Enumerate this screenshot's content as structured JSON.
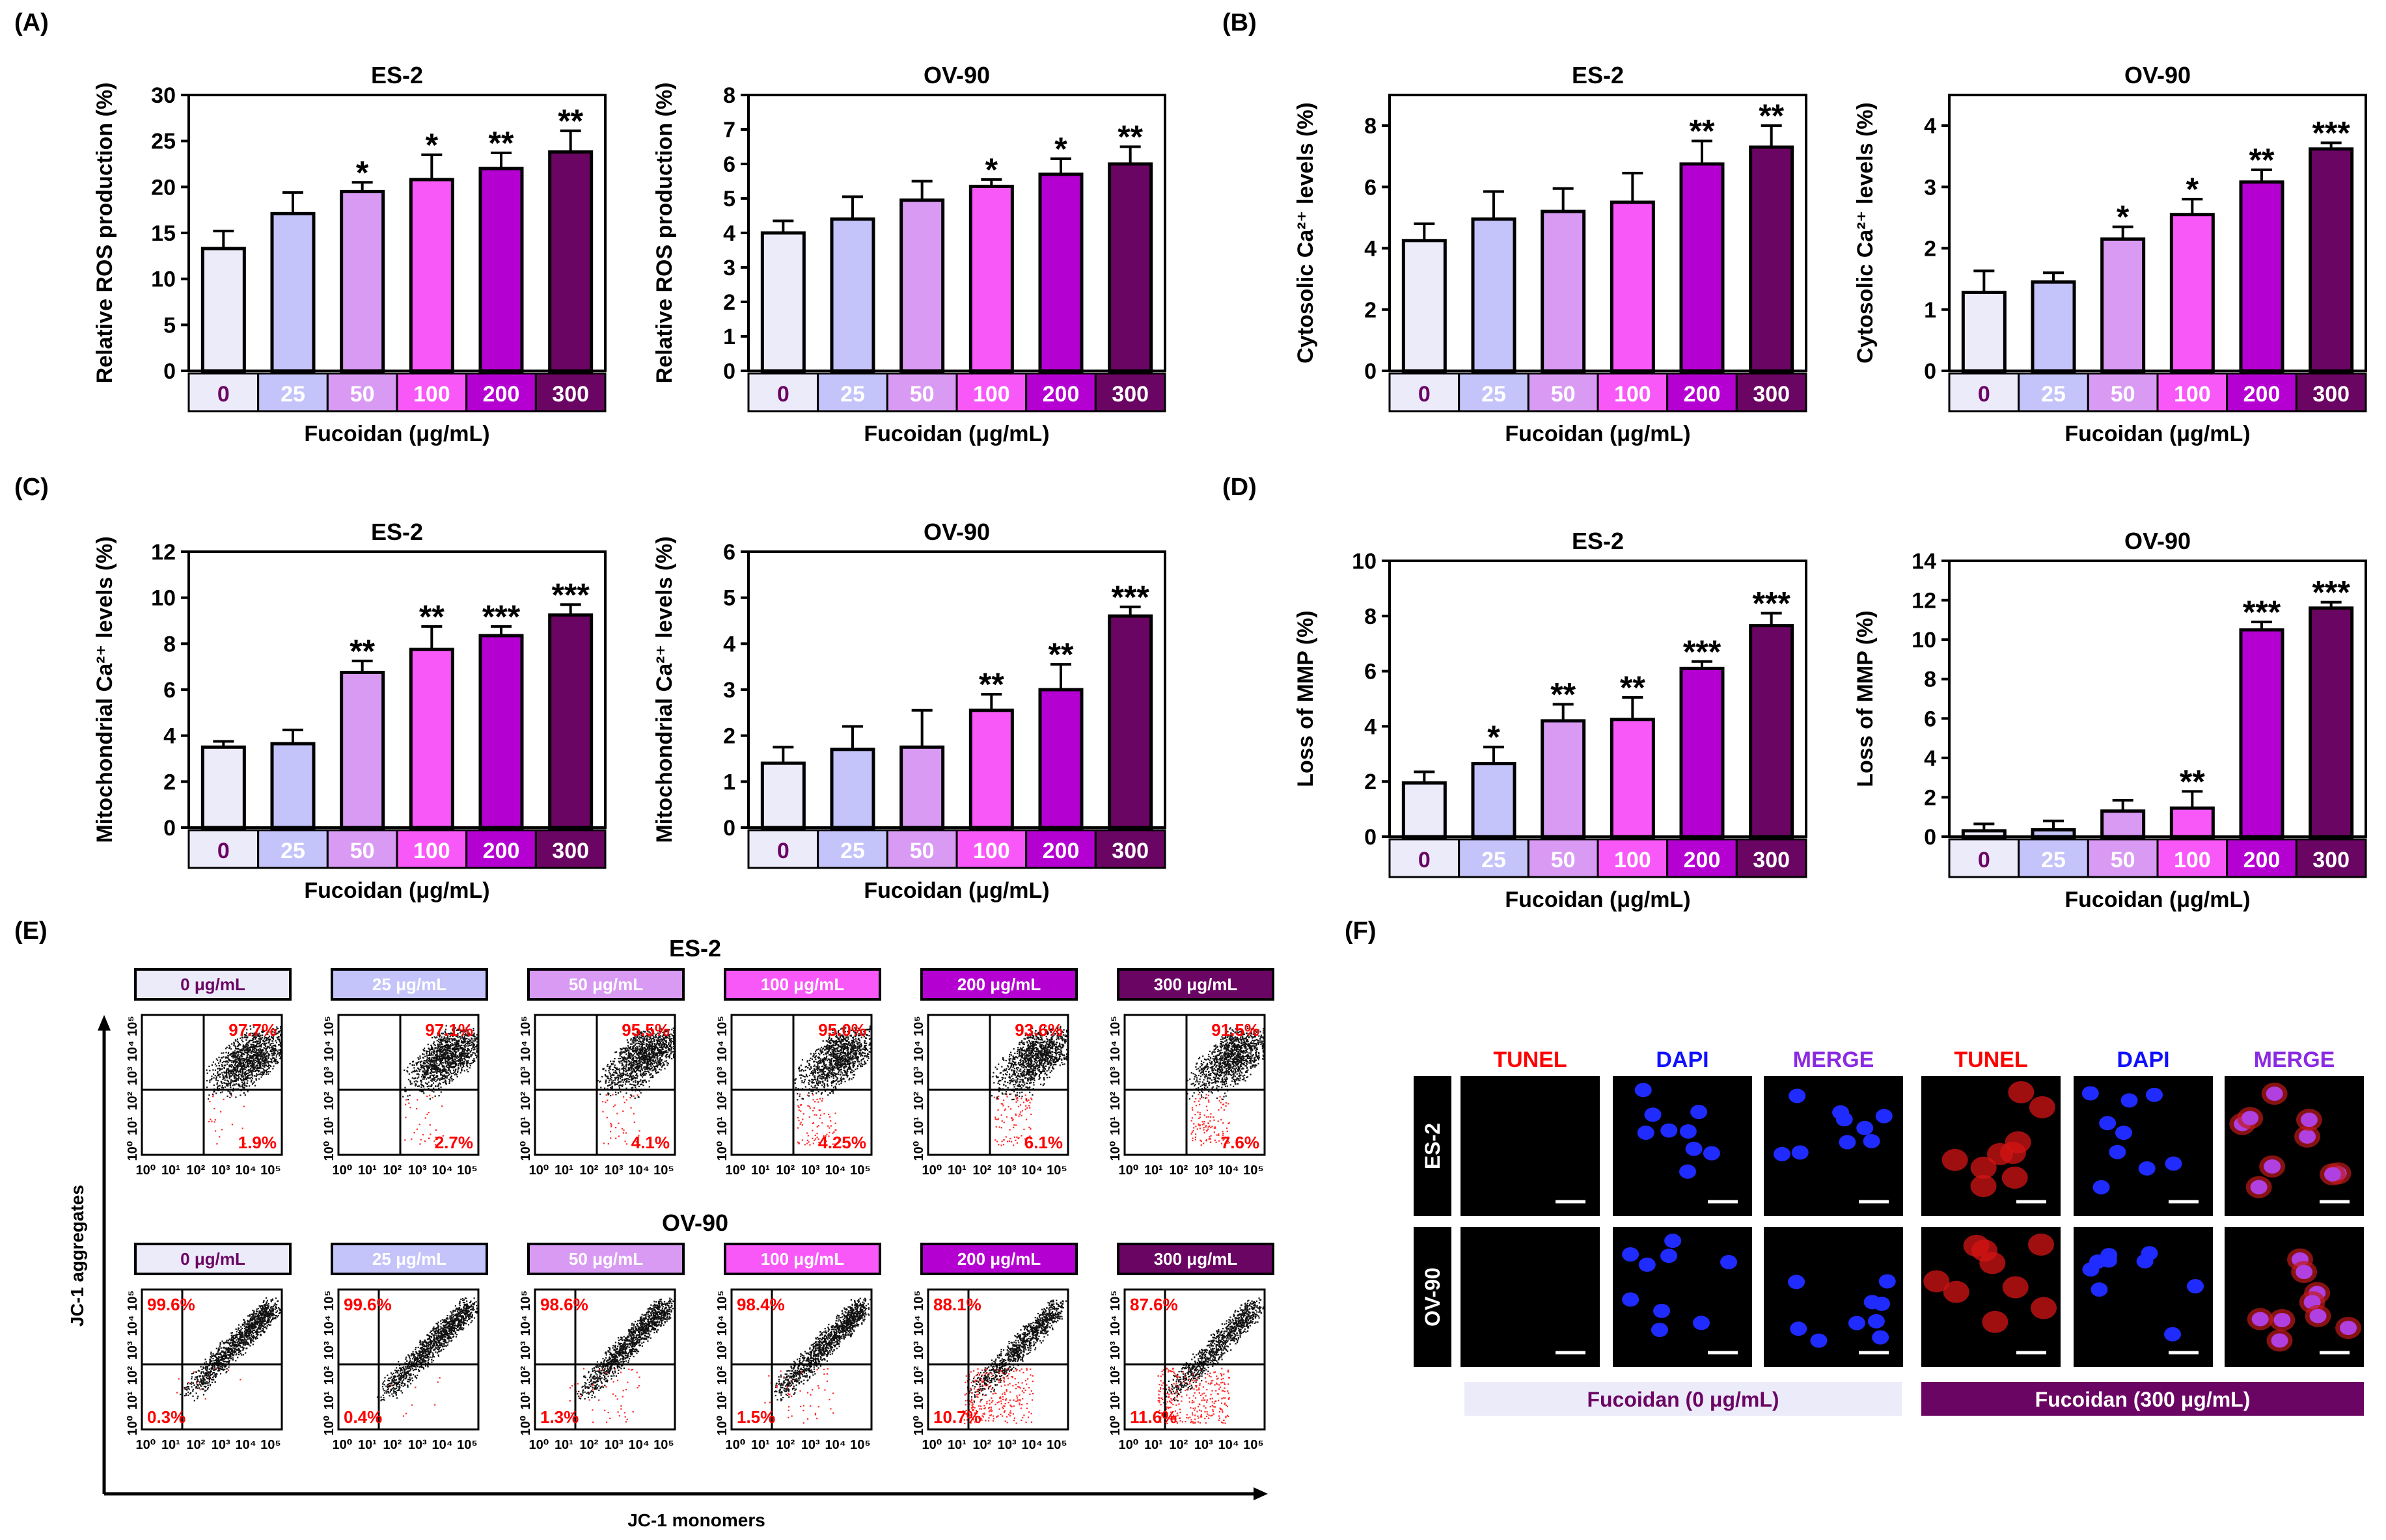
{
  "colors": {
    "levels": [
      "#ecebfa",
      "#c4c4fa",
      "#d99af4",
      "#f958f9",
      "#b500d2",
      "#6b0563"
    ],
    "label_text": [
      "#6b0563",
      "#ffffff",
      "#ffffff",
      "#ffffff",
      "#ffffff",
      "#ffffff"
    ],
    "tunel": "#ff0000",
    "dapi": "#1010ff",
    "merge": "#8a2be2",
    "red_pct": "#ff0000"
  },
  "panel_labels": {
    "a": "(A)",
    "b": "(B)",
    "c": "(C)",
    "d": "(D)",
    "e": "(E)",
    "f": "(F)"
  },
  "x_axis_label": "Fucoidan (μg/mL)",
  "chart_data": [
    {
      "id": "A1",
      "type": "bar",
      "title": "ES-2",
      "ylabel": "Relative ROS production (%)",
      "ylim": [
        0,
        30
      ],
      "yticks": [
        0,
        5,
        10,
        15,
        20,
        25,
        30
      ],
      "categories": [
        "0",
        "25",
        "50",
        "100",
        "200",
        "300"
      ],
      "values": [
        13.3,
        17.1,
        19.5,
        20.8,
        22.0,
        23.8
      ],
      "errors": [
        1.9,
        2.3,
        1.0,
        2.7,
        1.7,
        2.3
      ],
      "significance": [
        "",
        "",
        "*",
        "*",
        "**",
        "**"
      ]
    },
    {
      "id": "A2",
      "type": "bar",
      "title": "OV-90",
      "ylabel": "Relative ROS production (%)",
      "ylim": [
        0,
        8
      ],
      "yticks": [
        0,
        1,
        2,
        3,
        4,
        5,
        6,
        7,
        8
      ],
      "categories": [
        "0",
        "25",
        "50",
        "100",
        "200",
        "300"
      ],
      "values": [
        4.0,
        4.4,
        4.95,
        5.35,
        5.7,
        6.0
      ],
      "errors": [
        0.35,
        0.65,
        0.55,
        0.2,
        0.45,
        0.5
      ],
      "significance": [
        "",
        "",
        "",
        "*",
        "*",
        "**"
      ]
    },
    {
      "id": "B1",
      "type": "bar",
      "title": "ES-2",
      "ylabel": "Cytosolic Ca²⁺ levels (%)",
      "ylim": [
        0,
        9
      ],
      "yticks": [
        0,
        2,
        4,
        6,
        8
      ],
      "categories": [
        "0",
        "25",
        "50",
        "100",
        "200",
        "300"
      ],
      "values": [
        4.25,
        4.95,
        5.2,
        5.5,
        6.75,
        7.3
      ],
      "errors": [
        0.55,
        0.9,
        0.75,
        0.95,
        0.75,
        0.7
      ],
      "significance": [
        "",
        "",
        "",
        "",
        "**",
        "**"
      ]
    },
    {
      "id": "B2",
      "type": "bar",
      "title": "OV-90",
      "ylabel": "Cytosolic Ca²⁺ levels (%)",
      "ylim": [
        0,
        4.5
      ],
      "yticks": [
        0,
        1,
        2,
        3,
        4
      ],
      "categories": [
        "0",
        "25",
        "50",
        "100",
        "200",
        "300"
      ],
      "values": [
        1.28,
        1.45,
        2.15,
        2.55,
        3.08,
        3.62
      ],
      "errors": [
        0.35,
        0.15,
        0.2,
        0.25,
        0.2,
        0.1
      ],
      "significance": [
        "",
        "",
        "*",
        "*",
        "**",
        "***"
      ]
    },
    {
      "id": "C1",
      "type": "bar",
      "title": "ES-2",
      "ylabel": "Mitochondrial Ca²⁺ levels (%)",
      "ylim": [
        0,
        12
      ],
      "yticks": [
        0,
        2,
        4,
        6,
        8,
        10,
        12
      ],
      "categories": [
        "0",
        "25",
        "50",
        "100",
        "200",
        "300"
      ],
      "values": [
        3.5,
        3.65,
        6.75,
        7.75,
        8.35,
        9.25
      ],
      "errors": [
        0.25,
        0.6,
        0.5,
        1.0,
        0.4,
        0.45
      ],
      "significance": [
        "",
        "",
        "**",
        "**",
        "***",
        "***"
      ]
    },
    {
      "id": "C2",
      "type": "bar",
      "title": "OV-90",
      "ylabel": "Mitochondrial Ca²⁺ levels (%)",
      "ylim": [
        0,
        6
      ],
      "yticks": [
        0,
        1,
        2,
        3,
        4,
        5,
        6
      ],
      "categories": [
        "0",
        "25",
        "50",
        "100",
        "200",
        "300"
      ],
      "values": [
        1.4,
        1.7,
        1.75,
        2.55,
        3.0,
        4.6
      ],
      "errors": [
        0.35,
        0.5,
        0.8,
        0.35,
        0.55,
        0.2
      ],
      "significance": [
        "",
        "",
        "",
        "**",
        "**",
        "***"
      ]
    },
    {
      "id": "D1",
      "type": "bar",
      "title": "ES-2",
      "ylabel": "Loss of MMP (%)",
      "ylim": [
        0,
        10
      ],
      "yticks": [
        0,
        2,
        4,
        6,
        8,
        10
      ],
      "categories": [
        "0",
        "25",
        "50",
        "100",
        "200",
        "300"
      ],
      "values": [
        1.95,
        2.65,
        4.2,
        4.25,
        6.1,
        7.65
      ],
      "errors": [
        0.4,
        0.6,
        0.6,
        0.8,
        0.25,
        0.45
      ],
      "significance": [
        "",
        "*",
        "**",
        "**",
        "***",
        "***"
      ]
    },
    {
      "id": "D2",
      "type": "bar",
      "title": "OV-90",
      "ylabel": "Loss of MMP (%)",
      "ylim": [
        0,
        14
      ],
      "yticks": [
        0,
        2,
        4,
        6,
        8,
        10,
        12,
        14
      ],
      "categories": [
        "0",
        "25",
        "50",
        "100",
        "200",
        "300"
      ],
      "values": [
        0.3,
        0.35,
        1.3,
        1.45,
        10.5,
        11.6
      ],
      "errors": [
        0.35,
        0.45,
        0.55,
        0.85,
        0.4,
        0.3
      ],
      "significance": [
        "",
        "",
        "",
        "**",
        "***",
        "***"
      ]
    },
    {
      "id": "E",
      "type": "scatter",
      "xlabel": "JC-1 monomers",
      "ylabel": "JC-1 aggregates",
      "axis_ticks": [
        "10⁰",
        "10¹",
        "10²",
        "10³",
        "10⁴",
        "10⁵"
      ],
      "rows": [
        {
          "cell_line": "ES-2",
          "doses": [
            "0 μg/mL",
            "25 μg/mL",
            "50 μg/mL",
            "100 μg/mL",
            "200 μg/mL",
            "300 μg/mL"
          ],
          "upper_right_pct": [
            "97.7%",
            "97.1%",
            "95.5%",
            "95.0%",
            "93.6%",
            "91.5%"
          ],
          "lower_right_pct": [
            "1.9%",
            "2.7%",
            "4.1%",
            "4.25%",
            "6.1%",
            "7.6%"
          ]
        },
        {
          "cell_line": "OV-90",
          "doses": [
            "0 μg/mL",
            "25 μg/mL",
            "50 μg/mL",
            "100 μg/mL",
            "200 μg/mL",
            "300 μg/mL"
          ],
          "upper_left_pct": [
            "99.6%",
            "99.6%",
            "98.6%",
            "98.4%",
            "88.1%",
            "87.6%"
          ],
          "lower_left_pct": [
            "0.3%",
            "0.4%",
            "1.3%",
            "1.5%",
            "10.7%",
            "11.6%"
          ]
        }
      ]
    }
  ],
  "panel_f": {
    "columns": [
      "TUNEL",
      "DAPI",
      "MERGE",
      "TUNEL",
      "DAPI",
      "MERGE"
    ],
    "rows": [
      "ES-2",
      "OV-90"
    ],
    "groups": [
      "Fucoidan (0 μg/mL)",
      "Fucoidan (300 μg/mL)"
    ]
  }
}
